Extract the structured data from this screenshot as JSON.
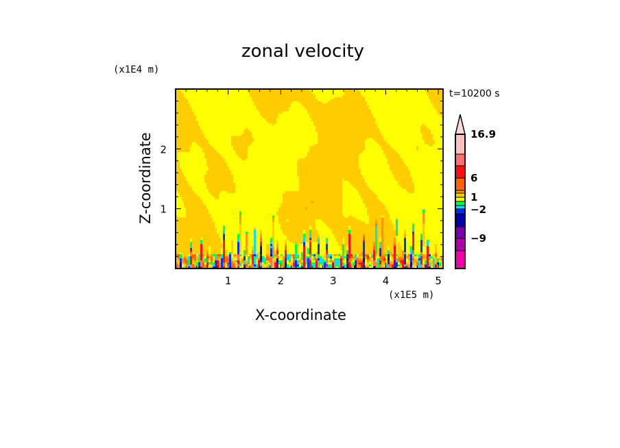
{
  "chart_data": {
    "type": "heatmap",
    "title": "zonal velocity",
    "xlabel": "X-coordinate",
    "ylabel": "Z-coordinate",
    "x_unit": "(x1E5 m)",
    "y_unit": "(x1E4 m)",
    "annotation": "t=10200 s",
    "xlim": [
      0,
      5.09
    ],
    "ylim": [
      0,
      3
    ],
    "xticks": [
      1,
      2,
      3,
      4,
      5
    ],
    "yticks": [
      1,
      2
    ],
    "colorbar": {
      "levels": [
        -15,
        -12,
        -9,
        -6,
        -3,
        -2,
        -1,
        0,
        1,
        2,
        3,
        6,
        9,
        12,
        16.9
      ],
      "labels": [
        "16.9",
        "6",
        "1",
        "−2",
        "−9"
      ],
      "label_values": [
        16.9,
        6,
        1,
        -2,
        -9
      ],
      "colors": [
        "#ee00aa",
        "#aa00aa",
        "#7700aa",
        "#0000aa",
        "#0030ff",
        "#00e0ff",
        "#00ff44",
        "#ffff00",
        "#ffcc00",
        "#ff9900",
        "#ff6600",
        "#ff1010",
        "#ff7070",
        "#ffc0c0",
        "#ffd8d8"
      ],
      "extend": "max"
    }
  }
}
